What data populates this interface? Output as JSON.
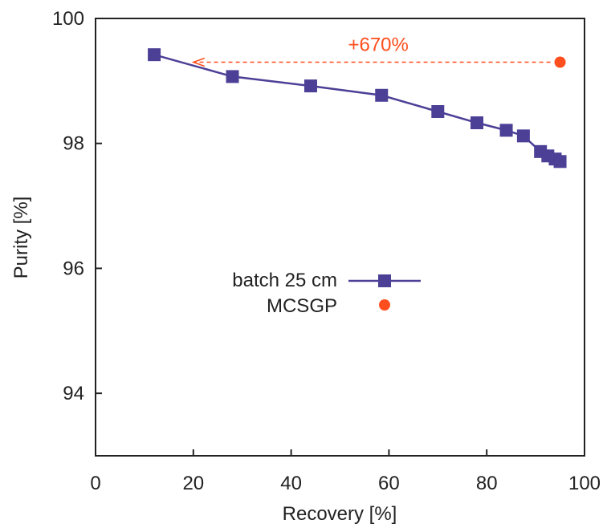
{
  "chart_data": {
    "type": "scatter",
    "title": "",
    "xlabel": "Recovery [%]",
    "ylabel": "Purity [%]",
    "xlim": [
      0,
      100
    ],
    "ylim": [
      93,
      100
    ],
    "xticks": [
      "0",
      "20",
      "40",
      "60",
      "80",
      "100"
    ],
    "yticks": [
      "94",
      "96",
      "98",
      "100"
    ],
    "grid": false,
    "legend_position": "center-left",
    "series": [
      {
        "name": "batch 25 cm",
        "marker": "square",
        "line": true,
        "color": "#4b3f96",
        "x": [
          12.0,
          28.0,
          44.0,
          58.5,
          70.0,
          78.0,
          84.0,
          87.5,
          91.0,
          92.5,
          94.0,
          95.0
        ],
        "y": [
          99.42,
          99.07,
          98.92,
          98.77,
          98.51,
          98.33,
          98.21,
          98.12,
          97.87,
          97.8,
          97.75,
          97.71
        ]
      },
      {
        "name": "MCSGP",
        "marker": "circle",
        "line": false,
        "color": "#ff4e1e",
        "x": [
          95.0
        ],
        "y": [
          99.3
        ]
      }
    ],
    "annotations": [
      {
        "text": "+670%",
        "color": "#ff4e1e",
        "arrow_from": [
          95.0,
          99.3
        ],
        "arrow_to": [
          20.0,
          99.3
        ],
        "style": "dashed-arrow"
      }
    ]
  }
}
